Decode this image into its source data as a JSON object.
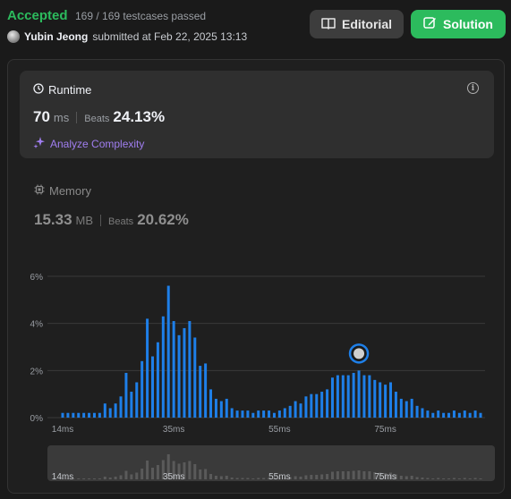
{
  "header": {
    "status": "Accepted",
    "testcases": "169 / 169 testcases passed",
    "user": "Yubin Jeong",
    "submitted": "submitted at Feb 22, 2025 13:13",
    "editorial_label": "Editorial",
    "solution_label": "Solution"
  },
  "runtime": {
    "title": "Runtime",
    "value": "70",
    "unit": "ms",
    "beats_label": "Beats",
    "beats": "24.13%",
    "analyze_label": "Analyze Complexity"
  },
  "memory": {
    "title": "Memory",
    "value": "15.33",
    "unit": "MB",
    "beats_label": "Beats",
    "beats": "20.62%"
  },
  "colors": {
    "accent_green": "#2cbb5d",
    "bar_blue": "#1e7fe8",
    "analyze_purple": "#a07ef0"
  },
  "chart_data": {
    "type": "bar",
    "ylabel": "",
    "xlabel": "",
    "y_ticks": [
      "0%",
      "2%",
      "4%",
      "6%"
    ],
    "ylim": [
      0,
      6
    ],
    "x_ticks": [
      "14ms",
      "35ms",
      "55ms",
      "75ms"
    ],
    "x_tick_values": [
      14,
      35,
      55,
      75
    ],
    "x": [
      14,
      15,
      16,
      17,
      18,
      19,
      20,
      21,
      22,
      23,
      24,
      25,
      26,
      27,
      28,
      29,
      30,
      31,
      32,
      33,
      34,
      35,
      36,
      37,
      38,
      39,
      40,
      41,
      42,
      43,
      44,
      45,
      46,
      47,
      48,
      49,
      50,
      51,
      52,
      53,
      54,
      55,
      56,
      57,
      58,
      59,
      60,
      61,
      62,
      63,
      64,
      65,
      66,
      67,
      68,
      69,
      70,
      71,
      72,
      73,
      74,
      75,
      76,
      77,
      78,
      79,
      80,
      81,
      82,
      83,
      84,
      85,
      86,
      87,
      88,
      89,
      90,
      91,
      92,
      93
    ],
    "values": [
      0.2,
      0.2,
      0.2,
      0.2,
      0.2,
      0.2,
      0.2,
      0.2,
      0.6,
      0.4,
      0.6,
      0.9,
      1.9,
      1.1,
      1.5,
      2.4,
      4.2,
      2.6,
      3.2,
      4.3,
      5.6,
      4.1,
      3.5,
      3.8,
      4.1,
      3.4,
      2.2,
      2.3,
      1.2,
      0.8,
      0.7,
      0.8,
      0.4,
      0.3,
      0.3,
      0.3,
      0.2,
      0.3,
      0.3,
      0.3,
      0.2,
      0.3,
      0.4,
      0.5,
      0.7,
      0.6,
      0.9,
      1.0,
      1.0,
      1.1,
      1.2,
      1.7,
      1.8,
      1.8,
      1.8,
      1.9,
      2.0,
      1.8,
      1.8,
      1.6,
      1.5,
      1.4,
      1.5,
      1.1,
      0.8,
      0.7,
      0.8,
      0.5,
      0.4,
      0.3,
      0.2,
      0.3,
      0.2,
      0.2,
      0.3,
      0.2,
      0.3,
      0.2,
      0.3,
      0.2
    ],
    "highlight_x": 70,
    "highlight_value": 2.0
  }
}
